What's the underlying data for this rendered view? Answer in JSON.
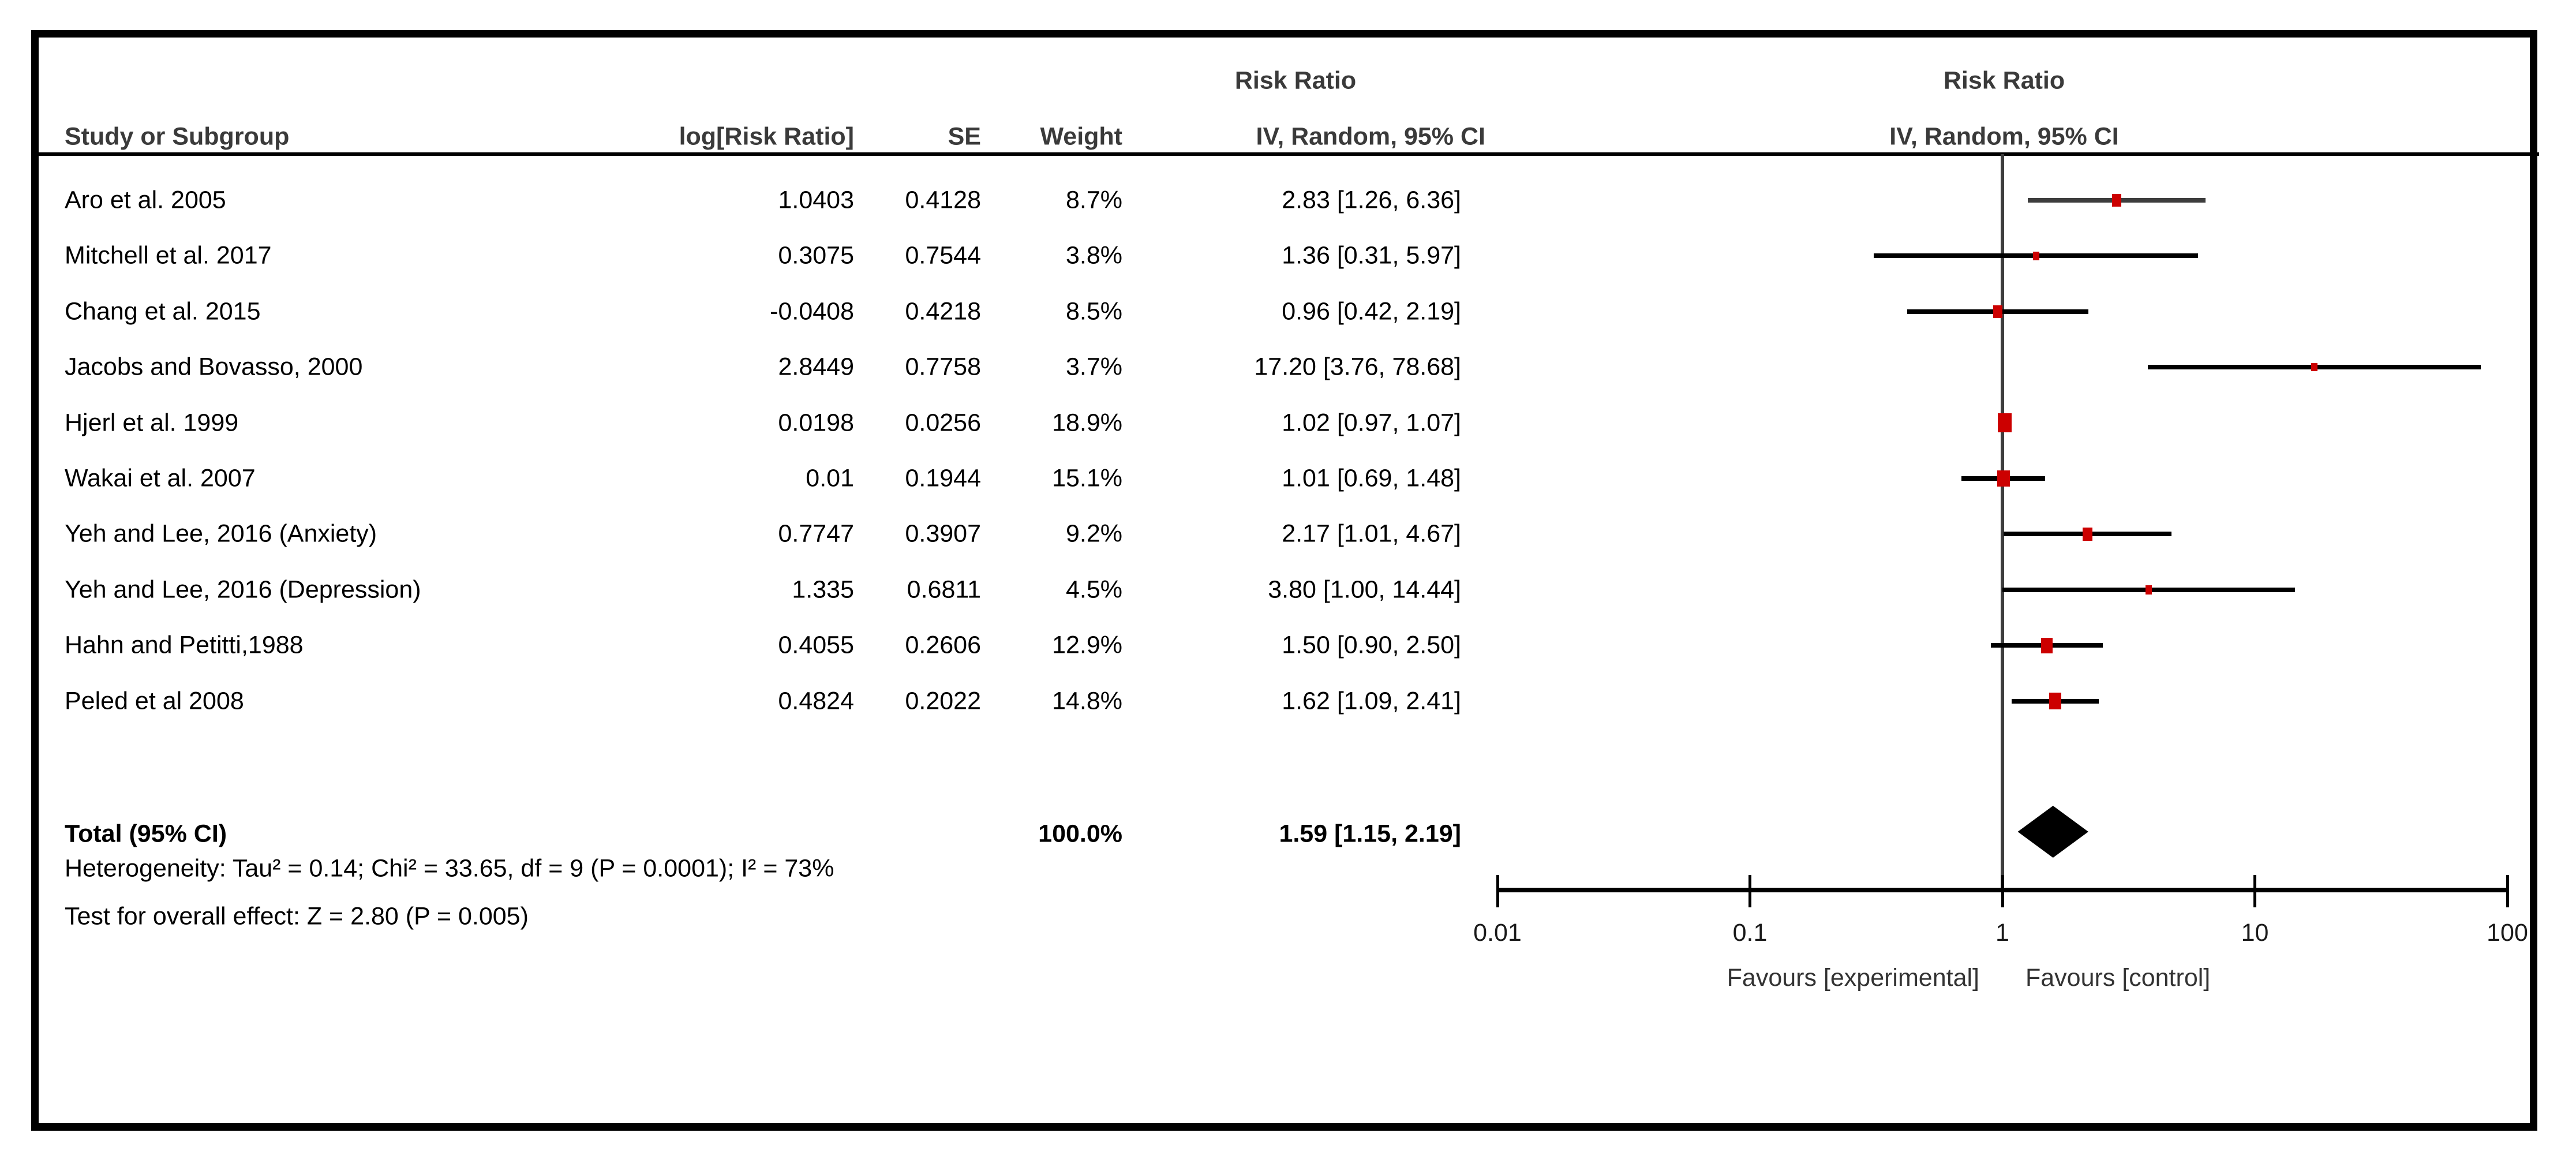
{
  "header": {
    "risk_ratio_left": "Risk Ratio",
    "risk_ratio_right": "Risk Ratio",
    "col_study": "Study or Subgroup",
    "col_log_rr": "log[Risk Ratio]",
    "col_se": "SE",
    "col_weight": "Weight",
    "col_ci": "IV, Random, 95% CI",
    "col_ci_right": "IV, Random, 95% CI"
  },
  "chart_data": {
    "type": "scatter",
    "variant": "forest-plot",
    "x_scale": "log10",
    "x_range": [
      0.01,
      100
    ],
    "x_ticks": [
      "0.01",
      "0.1",
      "1",
      "10",
      "100"
    ],
    "null_line": 1,
    "legend_position": "none",
    "grid": false,
    "marker_color": "#CC0000",
    "ci_line_color": "#000000",
    "null_line_color": "#3d3d3d",
    "favours_left": "Favours [experimental]",
    "favours_right": "Favours [control]",
    "rows": [
      {
        "study": "Aro et al. 2005",
        "log_rr": "1.0403",
        "se": "0.4128",
        "weight": "8.7%",
        "ci_text": "2.83 [1.26, 6.36]",
        "rr": 2.83,
        "lo": 1.26,
        "hi": 6.36,
        "weight_pct": 8.7,
        "ci_color": "#3d3d3d"
      },
      {
        "study": "Mitchell et al. 2017",
        "log_rr": "0.3075",
        "se": "0.7544",
        "weight": "3.8%",
        "ci_text": "1.36 [0.31, 5.97]",
        "rr": 1.36,
        "lo": 0.31,
        "hi": 5.97,
        "weight_pct": 3.8
      },
      {
        "study": "Chang et al. 2015",
        "log_rr": "-0.0408",
        "se": "0.4218",
        "weight": "8.5%",
        "ci_text": "0.96 [0.42, 2.19]",
        "rr": 0.96,
        "lo": 0.42,
        "hi": 2.19,
        "weight_pct": 8.5
      },
      {
        "study": "Jacobs and Bovasso, 2000",
        "log_rr": "2.8449",
        "se": "0.7758",
        "weight": "3.7%",
        "ci_text": "17.20 [3.76, 78.68]",
        "rr": 17.2,
        "lo": 3.76,
        "hi": 78.68,
        "weight_pct": 3.7
      },
      {
        "study": "Hjerl et al. 1999",
        "log_rr": "0.0198",
        "se": "0.0256",
        "weight": "18.9%",
        "ci_text": "1.02 [0.97, 1.07]",
        "rr": 1.02,
        "lo": 0.97,
        "hi": 1.07,
        "weight_pct": 18.9
      },
      {
        "study": "Wakai et al. 2007",
        "log_rr": "0.01",
        "se": "0.1944",
        "weight": "15.1%",
        "ci_text": "1.01 [0.69, 1.48]",
        "rr": 1.01,
        "lo": 0.69,
        "hi": 1.48,
        "weight_pct": 15.1
      },
      {
        "study": "Yeh and Lee, 2016 (Anxiety)",
        "log_rr": "0.7747",
        "se": "0.3907",
        "weight": "9.2%",
        "ci_text": "2.17 [1.01, 4.67]",
        "rr": 2.17,
        "lo": 1.01,
        "hi": 4.67,
        "weight_pct": 9.2
      },
      {
        "study": "Yeh and Lee, 2016 (Depression)",
        "log_rr": "1.335",
        "se": "0.6811",
        "weight": "4.5%",
        "ci_text": "3.80 [1.00, 14.44]",
        "rr": 3.8,
        "lo": 1.0,
        "hi": 14.44,
        "weight_pct": 4.5
      },
      {
        "study": "Hahn and Petitti,1988",
        "log_rr": "0.4055",
        "se": "0.2606",
        "weight": "12.9%",
        "ci_text": "1.50 [0.90, 2.50]",
        "rr": 1.5,
        "lo": 0.9,
        "hi": 2.5,
        "weight_pct": 12.9
      },
      {
        "study": "Peled et al 2008",
        "log_rr": "0.4824",
        "se": "0.2022",
        "weight": "14.8%",
        "ci_text": "1.62 [1.09, 2.41]",
        "rr": 1.62,
        "lo": 1.09,
        "hi": 2.41,
        "weight_pct": 14.8
      }
    ],
    "total": {
      "label": "Total (95% CI)",
      "weight": "100.0%",
      "ci_text": "1.59 [1.15, 2.19]",
      "rr": 1.59,
      "lo": 1.15,
      "hi": 2.19
    },
    "heterogeneity": "Heterogeneity: Tau² = 0.14; Chi² = 33.65, df = 9 (P = 0.0001); I² = 73%",
    "overall_effect": "Test for overall effect: Z = 2.80 (P = 0.005)"
  }
}
